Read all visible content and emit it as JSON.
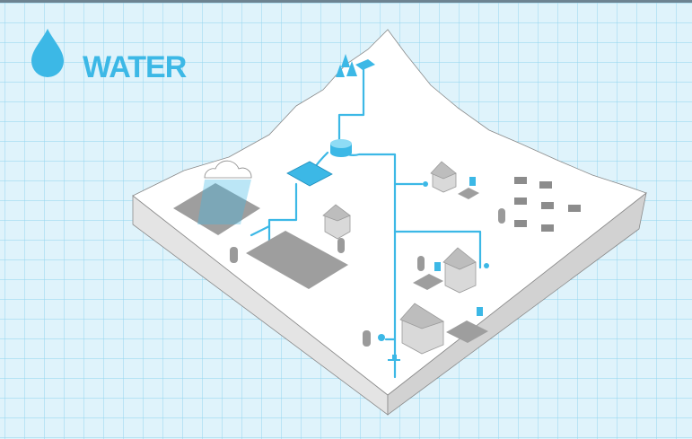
{
  "header": {
    "title": "WATER"
  }
}
